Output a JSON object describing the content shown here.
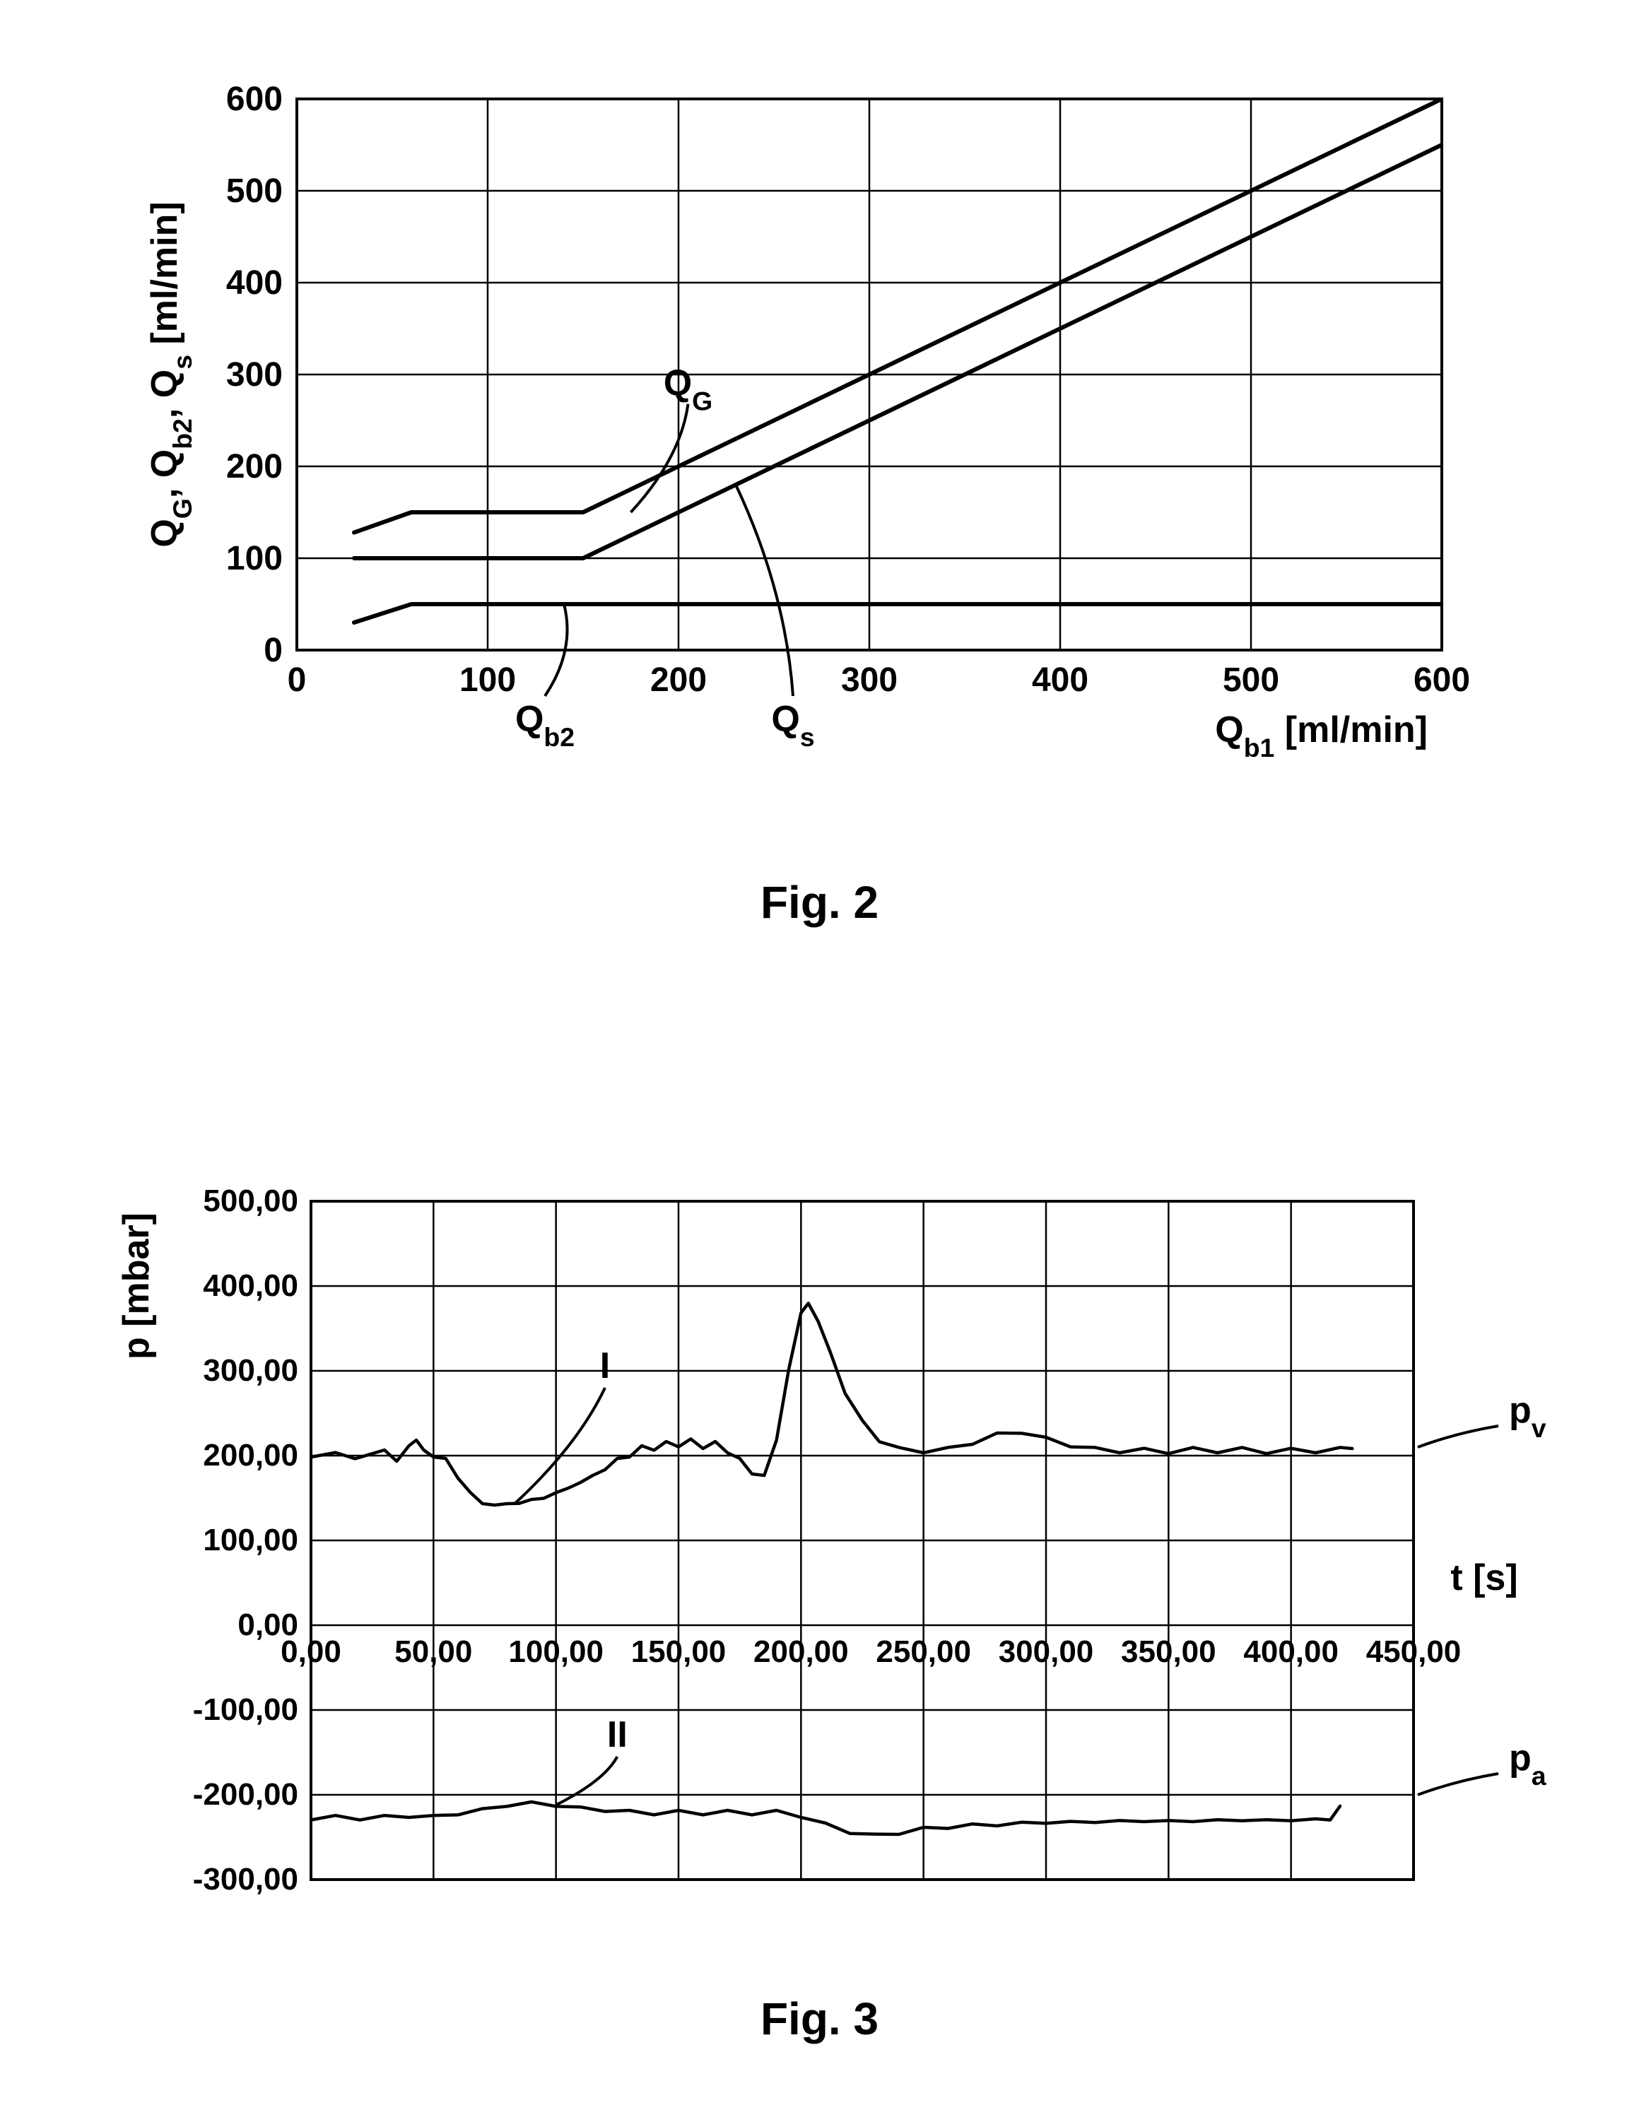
{
  "fig2": {
    "caption": "Fig. 2",
    "caption_fontsize": 64,
    "caption_fontweight": "bold",
    "ylabel": "Q_G, Q_{b2}, Q_s [ml/min]",
    "xlabel": "Q_{b1} [ml/min]",
    "label_fontsize": 52,
    "tick_fontsize": 48,
    "xlim": [
      0,
      600
    ],
    "ylim": [
      0,
      600
    ],
    "xtick_step": 100,
    "ytick_step": 100,
    "background_color": "#ffffff",
    "grid_color": "#000000",
    "axis_stroke": 4,
    "grid_stroke": 2.5,
    "series_stroke": 6,
    "series": {
      "QG": {
        "label": "Q_G",
        "points": [
          [
            30,
            128
          ],
          [
            60,
            150
          ],
          [
            150,
            150
          ],
          [
            600,
            600
          ]
        ],
        "callout_at": [
          175,
          150
        ],
        "callout_label_xy": [
          205,
          268
        ]
      },
      "Qs": {
        "label": "Q_s",
        "points": [
          [
            30,
            100
          ],
          [
            150,
            100
          ],
          [
            600,
            550
          ]
        ],
        "callout_at": [
          230,
          180
        ],
        "callout_label_xy": [
          260,
          -50
        ]
      },
      "Qb2": {
        "label": "Q_{b2}",
        "points": [
          [
            30,
            30
          ],
          [
            60,
            50
          ],
          [
            600,
            50
          ]
        ],
        "callout_at": [
          140,
          50
        ],
        "callout_label_xy": [
          130,
          -50
        ]
      }
    }
  },
  "fig3": {
    "caption": "Fig. 3",
    "caption_fontsize": 64,
    "caption_fontweight": "bold",
    "ylabel": "p [mbar]",
    "xlabel": "t [s]",
    "label_fontsize": 52,
    "tick_fontsize": 44,
    "xlim": [
      0,
      450
    ],
    "ylim": [
      -300,
      500
    ],
    "xtick_step": 50,
    "ytick_step": 100,
    "decimal_places": 2,
    "decimal_separator": ",",
    "background_color": "#ffffff",
    "grid_color": "#000000",
    "axis_stroke": 4,
    "grid_stroke": 2.5,
    "series_stroke": 4.5,
    "series": {
      "pv": {
        "label": "p_v",
        "points": [
          [
            0,
            200
          ],
          [
            10,
            202
          ],
          [
            18,
            198
          ],
          [
            30,
            205
          ],
          [
            35,
            195
          ],
          [
            40,
            210
          ],
          [
            43,
            220
          ],
          [
            46,
            205
          ],
          [
            50,
            200
          ],
          [
            55,
            195
          ],
          [
            60,
            175
          ],
          [
            65,
            155
          ],
          [
            70,
            145
          ],
          [
            75,
            140
          ],
          [
            80,
            145
          ],
          [
            85,
            142
          ],
          [
            90,
            150
          ],
          [
            95,
            148
          ],
          [
            100,
            158
          ],
          [
            105,
            160
          ],
          [
            110,
            170
          ],
          [
            115,
            175
          ],
          [
            120,
            185
          ],
          [
            125,
            195
          ],
          [
            130,
            200
          ],
          [
            135,
            210
          ],
          [
            140,
            208
          ],
          [
            145,
            215
          ],
          [
            150,
            212
          ],
          [
            155,
            218
          ],
          [
            160,
            210
          ],
          [
            165,
            215
          ],
          [
            170,
            205
          ],
          [
            175,
            195
          ],
          [
            180,
            180
          ],
          [
            185,
            175
          ],
          [
            190,
            220
          ],
          [
            195,
            300
          ],
          [
            200,
            370
          ],
          [
            203,
            378
          ],
          [
            207,
            360
          ],
          [
            212,
            320
          ],
          [
            218,
            275
          ],
          [
            225,
            240
          ],
          [
            232,
            218
          ],
          [
            240,
            208
          ],
          [
            250,
            205
          ],
          [
            260,
            208
          ],
          [
            270,
            215
          ],
          [
            280,
            225
          ],
          [
            290,
            228
          ],
          [
            300,
            220
          ],
          [
            310,
            212
          ],
          [
            320,
            208
          ],
          [
            330,
            205
          ],
          [
            340,
            207
          ],
          [
            350,
            204
          ],
          [
            360,
            208
          ],
          [
            370,
            205
          ],
          [
            380,
            208
          ],
          [
            390,
            204
          ],
          [
            400,
            207
          ],
          [
            410,
            205
          ],
          [
            420,
            208
          ],
          [
            425,
            210
          ]
        ],
        "right_label_y": 210,
        "callout": {
          "label": "I",
          "at": [
            83,
            143
          ],
          "label_xy": [
            120,
            280
          ]
        }
      },
      "pa": {
        "label": "p_a",
        "points": [
          [
            0,
            -228
          ],
          [
            10,
            -226
          ],
          [
            20,
            -228
          ],
          [
            30,
            -226
          ],
          [
            40,
            -225
          ],
          [
            50,
            -226
          ],
          [
            60,
            -222
          ],
          [
            70,
            -218
          ],
          [
            80,
            -212
          ],
          [
            90,
            -210
          ],
          [
            100,
            -212
          ],
          [
            110,
            -216
          ],
          [
            120,
            -218
          ],
          [
            130,
            -220
          ],
          [
            140,
            -222
          ],
          [
            150,
            -220
          ],
          [
            160,
            -222
          ],
          [
            170,
            -220
          ],
          [
            180,
            -222
          ],
          [
            190,
            -220
          ],
          [
            200,
            -225
          ],
          [
            210,
            -235
          ],
          [
            220,
            -244
          ],
          [
            230,
            -248
          ],
          [
            240,
            -245
          ],
          [
            250,
            -240
          ],
          [
            260,
            -238
          ],
          [
            270,
            -236
          ],
          [
            280,
            -235
          ],
          [
            290,
            -234
          ],
          [
            300,
            -232
          ],
          [
            310,
            -233
          ],
          [
            320,
            -231
          ],
          [
            330,
            -232
          ],
          [
            340,
            -230
          ],
          [
            350,
            -232
          ],
          [
            360,
            -230
          ],
          [
            370,
            -231
          ],
          [
            380,
            -229
          ],
          [
            390,
            -231
          ],
          [
            400,
            -229
          ],
          [
            410,
            -230
          ],
          [
            416,
            -228
          ],
          [
            420,
            -215
          ]
        ],
        "right_label_y": -200,
        "callout": {
          "label": "II",
          "at": [
            100,
            -212
          ],
          "label_xy": [
            125,
            -155
          ]
        }
      }
    }
  }
}
